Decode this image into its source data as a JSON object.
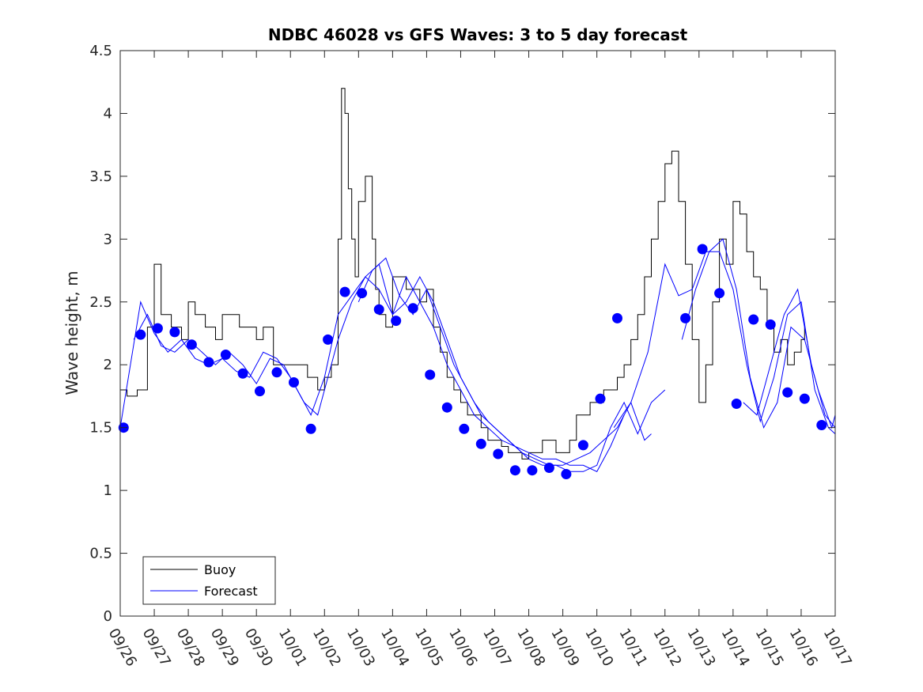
{
  "chart_data": {
    "type": "line",
    "title": "NDBC 46028 vs GFS Waves: 3 to 5 day forecast",
    "xlabel": "",
    "ylabel": "Wave height, m",
    "xlim": [
      0,
      21
    ],
    "ylim": [
      0,
      4.5
    ],
    "yticks": [
      0,
      0.5,
      1,
      1.5,
      2,
      2.5,
      3,
      3.5,
      4,
      4.5
    ],
    "ytick_labels": [
      "0",
      "0.5",
      "1",
      "1.5",
      "2",
      "2.5",
      "3",
      "3.5",
      "4",
      "4.5"
    ],
    "xticks": [
      0,
      1,
      2,
      3,
      4,
      5,
      6,
      7,
      8,
      9,
      10,
      11,
      12,
      13,
      14,
      15,
      16,
      17,
      18,
      19,
      20,
      21
    ],
    "xtick_labels": [
      "09/26",
      "09/27",
      "09/28",
      "09/29",
      "09/30",
      "10/01",
      "10/02",
      "10/03",
      "10/04",
      "10/05",
      "10/06",
      "10/07",
      "10/08",
      "10/09",
      "10/10",
      "10/11",
      "10/12",
      "10/13",
      "10/14",
      "10/15",
      "10/16",
      "10/17"
    ],
    "grid": false,
    "legend": {
      "position": "bottom-left",
      "entries": [
        "Buoy",
        "Forecast"
      ]
    },
    "colors": {
      "buoy": "#000000",
      "forecast": "#0000ff",
      "markers": "#0000ff"
    },
    "buoy": {
      "name": "Buoy",
      "x": [
        0,
        0.2,
        0.5,
        0.8,
        1.0,
        1.2,
        1.5,
        1.8,
        2.0,
        2.2,
        2.5,
        2.8,
        3.0,
        3.2,
        3.5,
        3.8,
        4.0,
        4.2,
        4.5,
        4.8,
        5.0,
        5.2,
        5.5,
        5.8,
        6.0,
        6.2,
        6.4,
        6.5,
        6.6,
        6.7,
        6.8,
        6.9,
        7.0,
        7.2,
        7.4,
        7.5,
        7.6,
        7.8,
        8.0,
        8.2,
        8.4,
        8.6,
        8.8,
        9.0,
        9.2,
        9.4,
        9.6,
        9.8,
        10.0,
        10.2,
        10.4,
        10.6,
        10.8,
        11.0,
        11.2,
        11.4,
        11.6,
        11.8,
        12.0,
        12.2,
        12.4,
        12.6,
        12.8,
        13.0,
        13.2,
        13.4,
        13.6,
        13.8,
        14.0,
        14.2,
        14.4,
        14.6,
        14.8,
        15.0,
        15.2,
        15.4,
        15.6,
        15.8,
        16.0,
        16.2,
        16.4,
        16.6,
        16.8,
        17.0,
        17.2,
        17.4,
        17.6,
        17.8,
        18.0,
        18.2,
        18.4,
        18.6,
        18.8,
        19.0,
        19.2,
        19.4,
        19.6,
        19.8,
        20.0,
        20.1
      ],
      "values": [
        1.8,
        1.75,
        1.8,
        2.3,
        2.8,
        2.4,
        2.3,
        2.2,
        2.5,
        2.4,
        2.3,
        2.2,
        2.4,
        2.4,
        2.3,
        2.3,
        2.2,
        2.3,
        2.0,
        2.0,
        2.0,
        2.0,
        1.9,
        1.8,
        1.9,
        2.0,
        3.0,
        4.2,
        4.0,
        3.4,
        3.0,
        2.7,
        3.3,
        3.5,
        3.0,
        2.6,
        2.4,
        2.3,
        2.7,
        2.7,
        2.6,
        2.6,
        2.5,
        2.6,
        2.3,
        2.1,
        1.9,
        1.8,
        1.7,
        1.6,
        1.6,
        1.5,
        1.4,
        1.4,
        1.35,
        1.3,
        1.3,
        1.25,
        1.3,
        1.3,
        1.4,
        1.4,
        1.3,
        1.3,
        1.4,
        1.6,
        1.6,
        1.7,
        1.7,
        1.8,
        1.8,
        1.9,
        2.0,
        2.2,
        2.4,
        2.7,
        3.0,
        3.3,
        3.6,
        3.7,
        3.3,
        2.8,
        2.2,
        1.7,
        2.0,
        2.5,
        3.0,
        2.8,
        3.3,
        3.2,
        2.9,
        2.7,
        2.6,
        2.3,
        2.1,
        2.2,
        2.0,
        2.1,
        2.2,
        2.3
      ]
    },
    "forecast_runs": [
      {
        "name": "Forecast",
        "x": [
          0,
          0.3,
          0.6,
          1.0,
          1.4,
          1.8,
          2.2,
          2.6,
          3.0,
          3.4,
          3.8,
          4.2,
          4.6,
          5.0,
          5.4,
          5.8,
          6.0
        ],
        "values": [
          1.5,
          2.0,
          2.5,
          2.25,
          2.1,
          2.2,
          2.05,
          2.0,
          2.05,
          1.95,
          1.9,
          2.1,
          2.05,
          1.9,
          1.7,
          1.6,
          1.8
        ]
      },
      {
        "name": "Forecast",
        "x": [
          0.4,
          0.8,
          1.2,
          1.6,
          2.0,
          2.4,
          2.8,
          3.2,
          3.6,
          4.0,
          4.4,
          4.8,
          5.2,
          5.6,
          6.0,
          6.4,
          6.8,
          7.2,
          7.6,
          8.0,
          8.4,
          8.8,
          9.2,
          9.6,
          10.0,
          10.4,
          10.8,
          11.2,
          11.6,
          12.0,
          12.4,
          12.8,
          13.2,
          13.6,
          14.0,
          14.4,
          14.8
        ],
        "values": [
          2.2,
          2.4,
          2.15,
          2.1,
          2.2,
          2.1,
          2.0,
          2.1,
          2.0,
          1.85,
          2.05,
          2.0,
          1.8,
          1.6,
          1.9,
          2.4,
          2.55,
          2.7,
          2.6,
          2.4,
          2.7,
          2.5,
          2.3,
          2.0,
          1.8,
          1.6,
          1.5,
          1.4,
          1.35,
          1.3,
          1.25,
          1.25,
          1.2,
          1.2,
          1.15,
          1.35,
          1.6
        ]
      },
      {
        "name": "Forecast",
        "x": [
          6.0,
          6.4,
          6.8,
          7.2,
          7.6,
          8.0,
          8.4,
          8.8,
          9.2,
          9.6,
          10.0,
          10.4,
          10.8,
          11.2,
          11.6,
          12.0,
          12.4,
          12.8,
          13.2,
          13.6,
          14.0,
          14.4,
          14.8,
          15.2,
          15.6,
          16.0
        ],
        "values": [
          1.8,
          2.2,
          2.5,
          2.7,
          2.8,
          2.4,
          2.5,
          2.7,
          2.5,
          2.2,
          1.9,
          1.7,
          1.55,
          1.45,
          1.35,
          1.25,
          1.2,
          1.2,
          1.15,
          1.15,
          1.2,
          1.5,
          1.7,
          1.45,
          1.7,
          1.8
        ]
      },
      {
        "name": "Forecast",
        "x": [
          7.0,
          7.4,
          7.8,
          8.2,
          8.6,
          9.0,
          9.4,
          9.8,
          10.2,
          10.6,
          11.0,
          11.4,
          11.8,
          12.2,
          12.6,
          13.0,
          13.4,
          13.8,
          14.2,
          14.6,
          15.0,
          15.4,
          15.6
        ],
        "values": [
          2.5,
          2.75,
          2.85,
          2.55,
          2.4,
          2.6,
          2.3,
          2.0,
          1.8,
          1.6,
          1.5,
          1.4,
          1.3,
          1.25,
          1.2,
          1.2,
          1.25,
          1.3,
          1.4,
          1.5,
          1.7,
          1.4,
          1.45
        ]
      },
      {
        "name": "Forecast",
        "x": [
          14.5,
          15.0,
          15.5,
          16.0,
          16.4,
          16.8,
          17.2,
          17.6,
          18.0,
          18.4,
          18.8,
          19.2,
          19.6,
          20.0,
          20.4,
          20.8,
          21.0
        ],
        "values": [
          1.5,
          1.7,
          2.1,
          2.8,
          2.55,
          2.6,
          2.9,
          2.9,
          2.6,
          2.0,
          1.55,
          1.9,
          2.4,
          2.5,
          1.8,
          1.5,
          1.45
        ]
      },
      {
        "name": "Forecast",
        "x": [
          16.5,
          16.9,
          17.3,
          17.7,
          18.1,
          18.5,
          18.9,
          19.3,
          19.7,
          20.1,
          20.5,
          20.9,
          21.0
        ],
        "values": [
          2.2,
          2.6,
          2.9,
          3.0,
          2.6,
          1.9,
          1.5,
          1.7,
          2.3,
          2.2,
          1.8,
          1.5,
          1.6
        ]
      },
      {
        "name": "Forecast",
        "x": [
          18.3,
          18.7,
          19.1,
          19.5,
          19.9,
          20.3,
          20.7,
          21.0
        ],
        "values": [
          1.7,
          1.6,
          2.0,
          2.4,
          2.6,
          2.0,
          1.6,
          1.5
        ]
      }
    ],
    "forecast_markers": {
      "x": [
        0.1,
        0.6,
        1.1,
        1.6,
        2.1,
        2.6,
        3.1,
        3.6,
        4.1,
        4.6,
        5.1,
        5.6,
        6.1,
        6.6,
        7.1,
        7.6,
        8.1,
        8.6,
        9.1,
        9.6,
        10.1,
        10.6,
        11.1,
        11.6,
        12.1,
        12.6,
        13.1,
        13.6,
        14.1,
        14.6,
        16.6,
        17.1,
        17.6,
        18.1,
        18.6,
        19.1,
        19.6,
        20.1,
        20.6
      ],
      "values": [
        1.5,
        2.24,
        2.29,
        2.26,
        2.16,
        2.02,
        2.08,
        1.93,
        1.79,
        1.94,
        1.86,
        1.49,
        2.2,
        2.58,
        2.57,
        2.44,
        2.35,
        2.45,
        1.92,
        1.66,
        1.49,
        1.37,
        1.29,
        1.16,
        1.16,
        1.18,
        1.13,
        1.36,
        1.73,
        2.37,
        2.37,
        2.92,
        2.57,
        1.69,
        2.36,
        2.32,
        1.78,
        1.73,
        1.52
      ]
    }
  }
}
